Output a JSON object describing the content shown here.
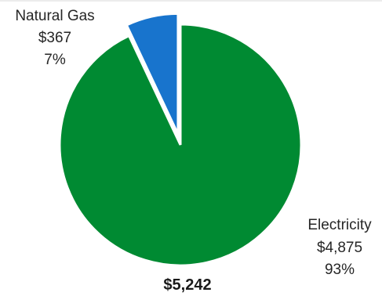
{
  "chart_data": {
    "type": "pie",
    "total_label": "$5,242",
    "slices": [
      {
        "category": "Natural Gas",
        "value": 367,
        "value_label": "$367",
        "percent_label": "7%",
        "color": "#1874CD",
        "exploded": true
      },
      {
        "category": "Electricity",
        "value": 4875,
        "value_label": "$4,875",
        "percent_label": "93%",
        "color": "#008A32",
        "exploded": false
      }
    ]
  }
}
